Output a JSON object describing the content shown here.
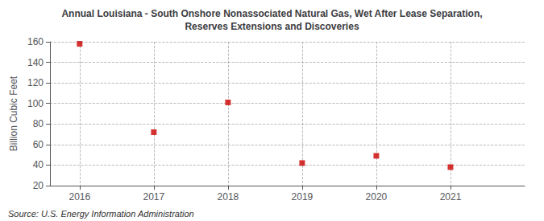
{
  "chart_data": {
    "type": "scatter",
    "title": "Annual Louisiana - South Onshore Nonassociated Natural Gas, Wet After Lease Separation,\nReserves Extensions and Discoveries",
    "ylabel": "Billion Cubic Feet",
    "annotations": [
      "Source: U.S. Energy Information Administration"
    ],
    "x": [
      2016,
      2017,
      2018,
      2019,
      2020,
      2021
    ],
    "values": [
      158,
      72,
      101,
      42,
      49,
      38
    ],
    "xlim": [
      2015.6,
      2022.0
    ],
    "xticks": [
      2016,
      2017,
      2018,
      2019,
      2020,
      2021
    ],
    "ylim": [
      20,
      160
    ],
    "yticks": [
      20,
      40,
      60,
      80,
      100,
      120,
      140,
      160
    ],
    "color": "#cc0000",
    "marker": "square",
    "grid": true
  }
}
